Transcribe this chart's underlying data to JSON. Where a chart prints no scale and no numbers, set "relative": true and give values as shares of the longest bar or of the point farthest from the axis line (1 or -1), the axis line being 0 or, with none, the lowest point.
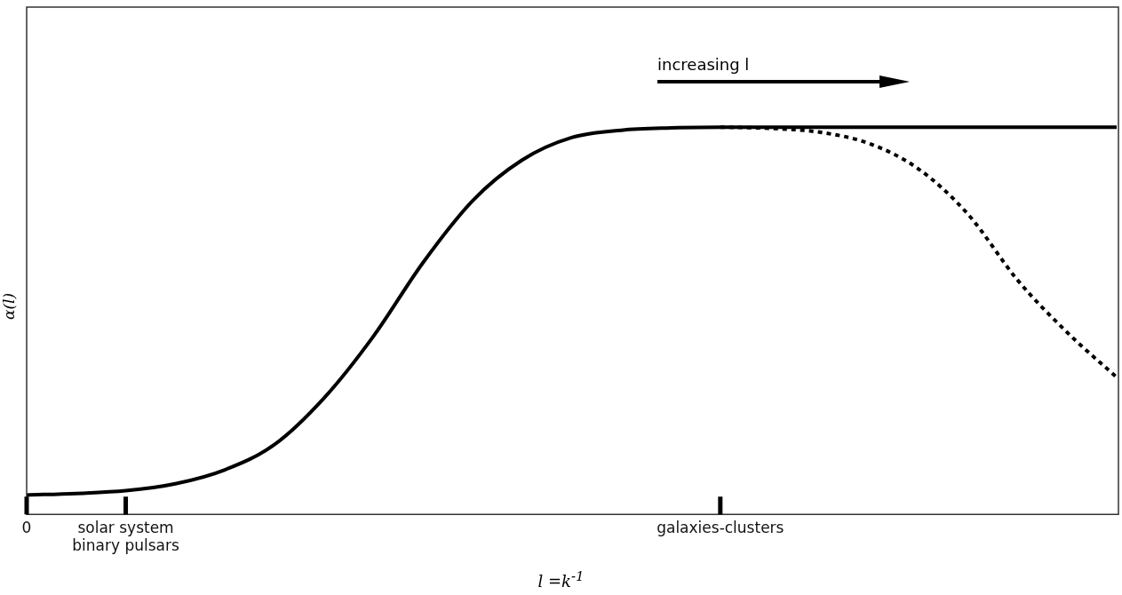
{
  "chart_data": {
    "type": "line",
    "relative": true,
    "xlabel": "l =k$^{-1}$",
    "ylabel": "α(l)",
    "annotations": [
      "increasing l"
    ],
    "categories": [
      "0",
      null,
      "solar system\nbinary pulsars",
      null,
      null,
      null,
      null,
      null,
      null,
      null,
      null,
      null,
      null,
      null,
      "galaxies-clusters",
      null,
      null,
      null,
      null,
      null,
      null,
      null,
      null
    ],
    "marker": "none",
    "series": [
      {
        "color": "#000000",
        "line_style": "solid",
        "values": [
          0.05,
          0.054,
          0.061,
          0.079,
          0.115,
          0.18,
          0.3,
          0.46,
          0.65,
          0.81,
          0.915,
          0.973,
          0.992,
          0.998,
          1,
          1,
          1,
          1,
          1,
          1,
          1,
          1,
          1
        ]
      },
      {
        "color": "#000000",
        "line_style": "dotted",
        "values": [
          null,
          null,
          null,
          null,
          null,
          null,
          null,
          null,
          null,
          null,
          null,
          null,
          null,
          null,
          1,
          0.997,
          0.987,
          0.958,
          0.892,
          0.775,
          0.605,
          0.47,
          0.354
        ]
      }
    ]
  }
}
